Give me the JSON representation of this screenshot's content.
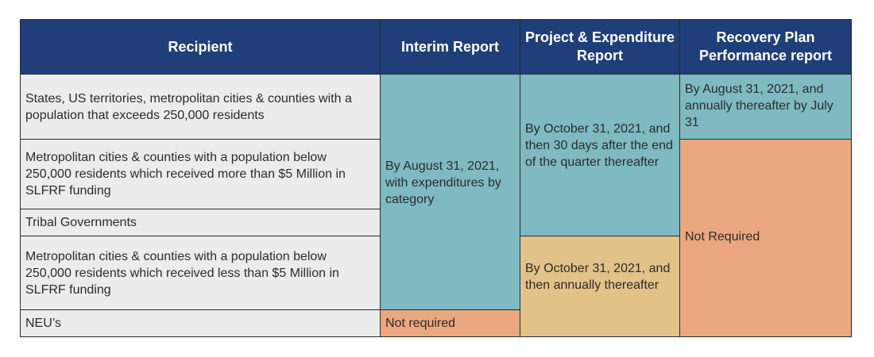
{
  "table": {
    "headers": [
      "Recipient",
      "Interim Report",
      "Project & Expenditure Report",
      "Recovery Plan Performance report"
    ],
    "recipients": [
      "States, US territories, metropolitan cities & counties with a population that exceeds 250,000 residents",
      "Metropolitan cities & counties with a population below 250,000 residents which received more than $5 Million in SLFRF funding",
      "Tribal Governments",
      "Metropolitan cities & counties with a population below 250,000 residents which received less than $5 Million in SLFRF funding",
      "NEU’s"
    ],
    "interim": {
      "main": "By August 31, 2021, with expenditures by category",
      "neu": "Not required"
    },
    "project_expenditure": {
      "upper": "By October 31, 2021, and then 30 days after the end of the quarter thereafter",
      "lower": "By October 31, 2021, and then annually thereafter"
    },
    "recovery_plan": {
      "upper": "By August 31, 2021, and annually thereafter by July 31",
      "lower": "Not Required"
    }
  },
  "colors": {
    "header_bg": "#1f3e7a",
    "teal": "#7fbac2",
    "peach": "#eba77f",
    "tan": "#e3c289",
    "recipient_bg": "#ececec"
  }
}
